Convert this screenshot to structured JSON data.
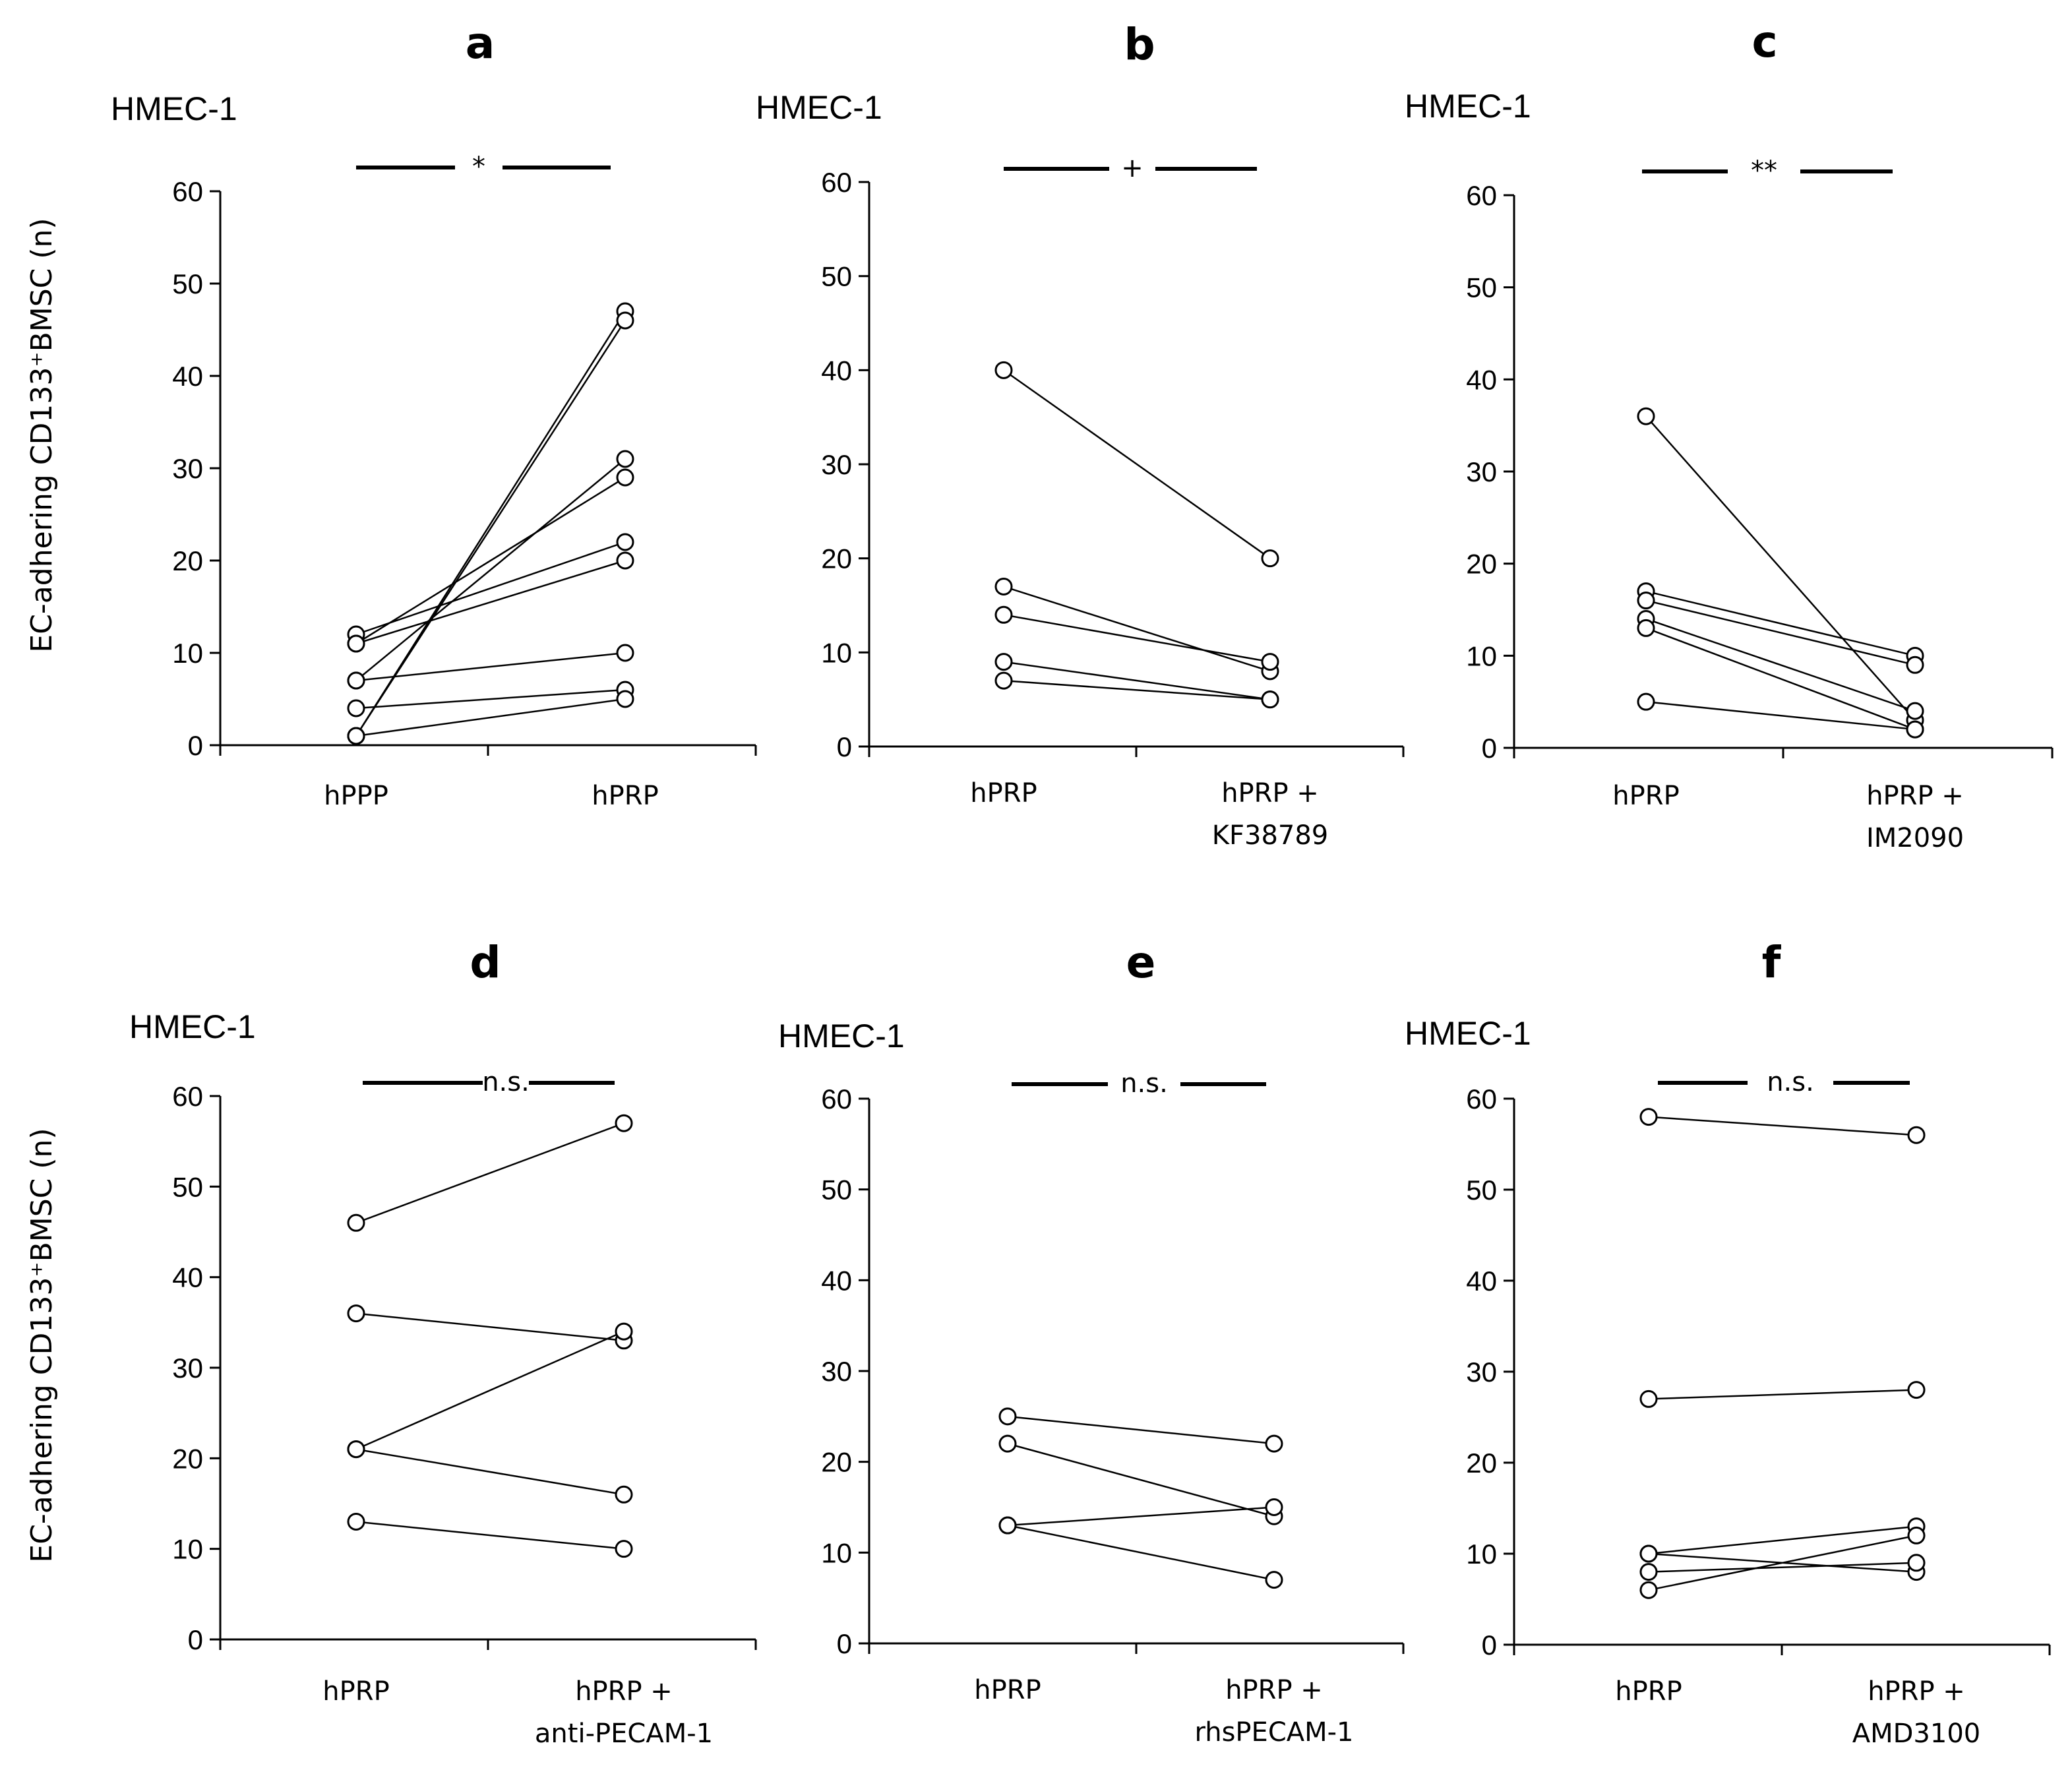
{
  "y_axis_label": "EC-adhering CD133⁺BMSC (n)",
  "chart_data": [
    {
      "type": "line",
      "panel": "a",
      "cell_label": "HMEC-1",
      "categories": [
        [
          "hPPP"
        ],
        [
          "hPRP"
        ]
      ],
      "significance": "*",
      "ylim": [
        0,
        60
      ],
      "yticks": [
        0,
        10,
        20,
        30,
        40,
        50,
        60
      ],
      "pairs": [
        [
          12,
          22
        ],
        [
          11,
          29
        ],
        [
          11,
          20
        ],
        [
          7,
          31
        ],
        [
          7,
          10
        ],
        [
          4,
          6
        ],
        [
          1,
          47
        ],
        [
          1,
          46
        ],
        [
          1,
          5
        ]
      ]
    },
    {
      "type": "line",
      "panel": "b",
      "cell_label": "HMEC-1",
      "categories": [
        [
          "hPRP"
        ],
        [
          "hPRP +",
          "KF38789"
        ]
      ],
      "significance": "+",
      "ylim": [
        0,
        60
      ],
      "yticks": [
        0,
        10,
        20,
        30,
        40,
        50,
        60
      ],
      "pairs": [
        [
          40,
          20
        ],
        [
          17,
          8
        ],
        [
          14,
          9
        ],
        [
          9,
          5
        ],
        [
          7,
          5
        ]
      ]
    },
    {
      "type": "line",
      "panel": "c",
      "cell_label": "HMEC-1",
      "categories": [
        [
          "hPRP"
        ],
        [
          "hPRP +",
          "IM2090"
        ]
      ],
      "significance": "**",
      "ylim": [
        0,
        60
      ],
      "yticks": [
        0,
        10,
        20,
        30,
        40,
        50,
        60
      ],
      "pairs": [
        [
          36,
          3
        ],
        [
          17,
          10
        ],
        [
          16,
          9
        ],
        [
          14,
          4
        ],
        [
          13,
          2
        ],
        [
          5,
          2
        ]
      ]
    },
    {
      "type": "line",
      "panel": "d",
      "cell_label": "HMEC-1",
      "categories": [
        [
          "hPRP"
        ],
        [
          "hPRP +",
          "anti-PECAM-1"
        ]
      ],
      "significance": "n.s.",
      "ylim": [
        0,
        60
      ],
      "yticks": [
        0,
        10,
        20,
        30,
        40,
        50,
        60
      ],
      "pairs": [
        [
          46,
          57
        ],
        [
          36,
          33
        ],
        [
          21,
          34
        ],
        [
          21,
          16
        ],
        [
          13,
          10
        ]
      ]
    },
    {
      "type": "line",
      "panel": "e",
      "cell_label": "HMEC-1",
      "categories": [
        [
          "hPRP"
        ],
        [
          "hPRP +",
          "rhsPECAM-1"
        ]
      ],
      "significance": "n.s.",
      "ylim": [
        0,
        60
      ],
      "yticks": [
        0,
        10,
        20,
        30,
        40,
        50,
        60
      ],
      "pairs": [
        [
          25,
          22
        ],
        [
          22,
          14
        ],
        [
          13,
          15
        ],
        [
          13,
          7
        ]
      ]
    },
    {
      "type": "line",
      "panel": "f",
      "cell_label": "HMEC-1",
      "categories": [
        [
          "hPRP"
        ],
        [
          "hPRP +",
          "AMD3100"
        ]
      ],
      "significance": "n.s.",
      "ylim": [
        0,
        60
      ],
      "yticks": [
        0,
        10,
        20,
        30,
        40,
        50,
        60
      ],
      "pairs": [
        [
          58,
          56
        ],
        [
          27,
          28
        ],
        [
          10,
          13
        ],
        [
          10,
          8
        ],
        [
          8,
          9
        ],
        [
          6,
          12
        ]
      ]
    }
  ]
}
